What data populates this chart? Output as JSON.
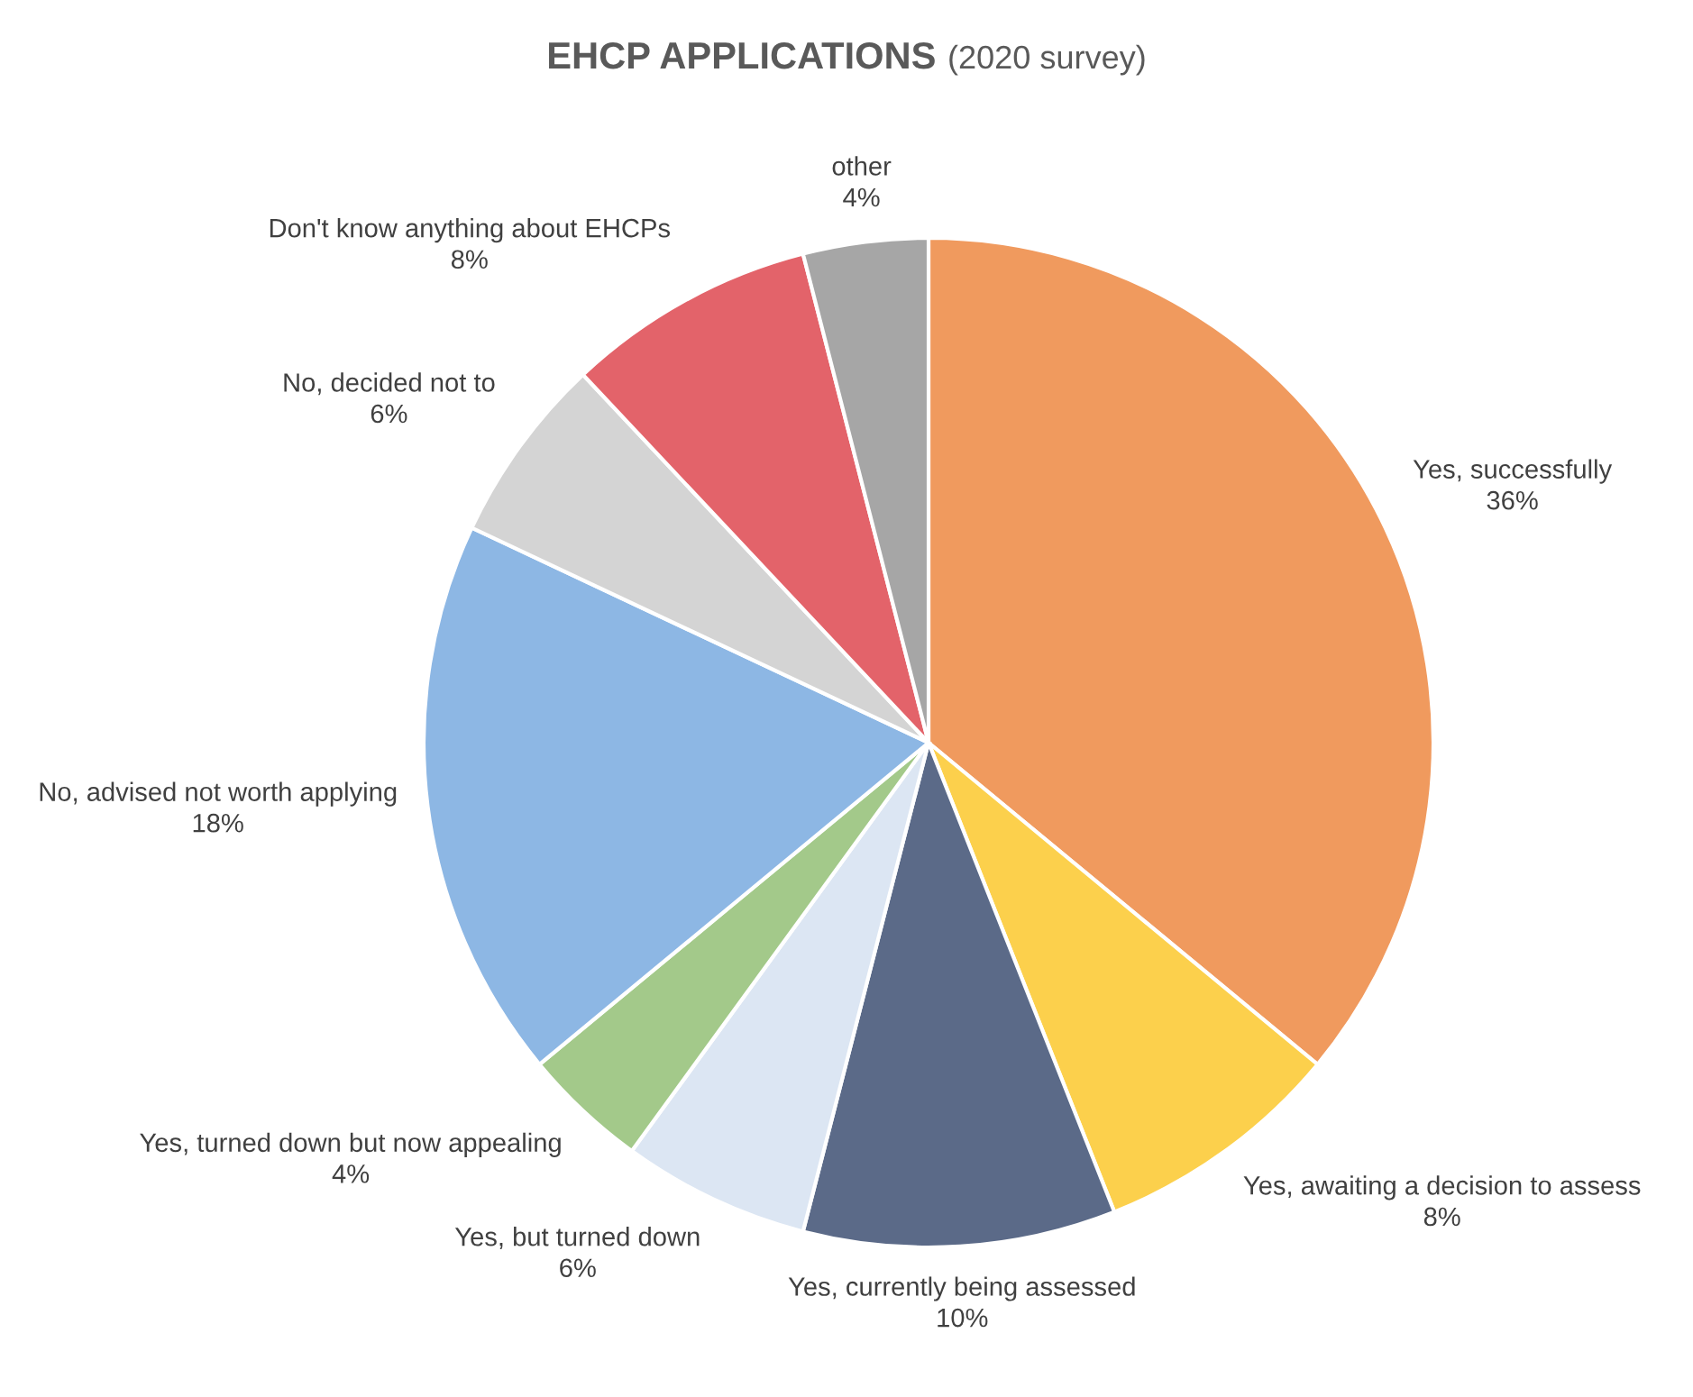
{
  "chart_data": {
    "type": "pie",
    "title": "EHCP APPLICATIONS",
    "subtitle": "(2020 survey)",
    "categories": [
      "Yes, successfully",
      "Yes, awaiting a decision to assess",
      "Yes, currently being assessed",
      "Yes, but turned down",
      "Yes, turned down but now appealing",
      "No, advised not worth applying",
      "No, decided not to",
      "Don't know anything about EHCPs",
      "other"
    ],
    "values": [
      36,
      8,
      10,
      6,
      4,
      18,
      6,
      8,
      4
    ],
    "colors": [
      "#f09a5e",
      "#fcd04c",
      "#5b6a88",
      "#dce6f3",
      "#a3c98a",
      "#8db7e4",
      "#d4d4d4",
      "#e3636a",
      "#a6a6a6"
    ],
    "value_labels": [
      "36%",
      "8%",
      "10%",
      "6%",
      "4%",
      "18%",
      "6%",
      "8%",
      "4%"
    ]
  }
}
